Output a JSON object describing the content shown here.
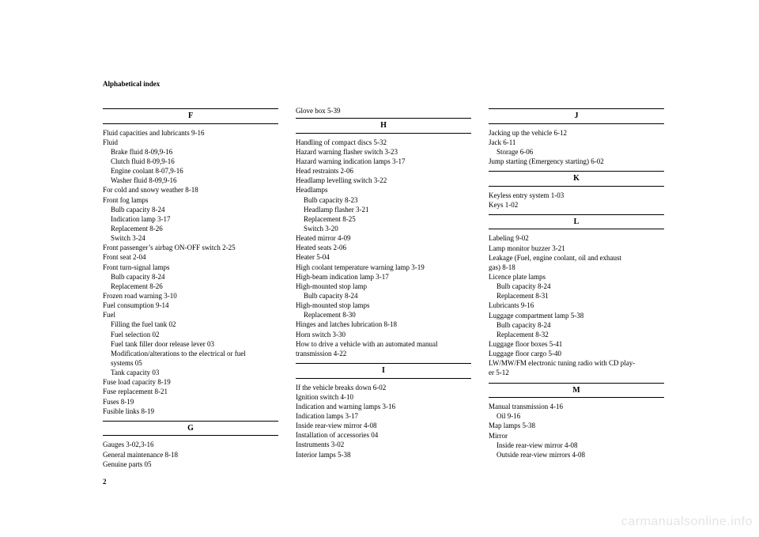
{
  "header": "Alphabetical index",
  "pageNum": "2",
  "watermark": "carmanualsonline.info",
  "col1": {
    "F": {
      "letter": "F",
      "lines": [
        {
          "t": "Fluid capacities and lubricants  9-16",
          "s": 0
        },
        {
          "t": "Fluid",
          "s": 0
        },
        {
          "t": "Brake fluid  8-09,9-16",
          "s": 1
        },
        {
          "t": "Clutch fluid  8-09,9-16",
          "s": 1
        },
        {
          "t": "Engine coolant  8-07,9-16",
          "s": 1
        },
        {
          "t": "Washer fluid  8-09,9-16",
          "s": 1
        },
        {
          "t": "For cold and snowy weather  8-18",
          "s": 0
        },
        {
          "t": "Front fog lamps",
          "s": 0
        },
        {
          "t": "Bulb capacity  8-24",
          "s": 1
        },
        {
          "t": "Indication lamp  3-17",
          "s": 1
        },
        {
          "t": "Replacement  8-26",
          "s": 1
        },
        {
          "t": "Switch  3-24",
          "s": 1
        },
        {
          "t": "Front passenger’s airbag ON-OFF switch  2-25",
          "s": 0
        },
        {
          "t": "Front seat  2-04",
          "s": 0
        },
        {
          "t": "Front turn-signal lamps",
          "s": 0
        },
        {
          "t": "Bulb capacity  8-24",
          "s": 1
        },
        {
          "t": "Replacement  8-26",
          "s": 1
        },
        {
          "t": "Frozen road warning  3-10",
          "s": 0
        },
        {
          "t": "Fuel consumption  9-14",
          "s": 0
        },
        {
          "t": "Fuel",
          "s": 0
        },
        {
          "t": "Filling the fuel tank  02",
          "s": 1
        },
        {
          "t": "Fuel selection  02",
          "s": 1
        },
        {
          "t": "Fuel tank filler door release lever  03",
          "s": 1
        },
        {
          "t": "Modification/alterations to the electrical or fuel",
          "s": 1
        },
        {
          "t": "systems  05",
          "s": 1
        },
        {
          "t": "Tank capacity  03",
          "s": 1
        },
        {
          "t": "Fuse load capacity  8-19",
          "s": 0
        },
        {
          "t": "Fuse replacement  8-21",
          "s": 0
        },
        {
          "t": "Fuses  8-19",
          "s": 0
        },
        {
          "t": "Fusible links  8-19",
          "s": 0
        }
      ]
    },
    "G": {
      "letter": "G",
      "lines": [
        {
          "t": "Gauges  3-02,3-16",
          "s": 0
        },
        {
          "t": "General maintenance  8-18",
          "s": 0
        },
        {
          "t": "Genuine parts  05",
          "s": 0
        }
      ]
    }
  },
  "col2": {
    "pre": [
      {
        "t": "Glove box  5-39",
        "s": 0
      }
    ],
    "H": {
      "letter": "H",
      "lines": [
        {
          "t": "Handling of compact discs  5-32",
          "s": 0
        },
        {
          "t": "Hazard warning flasher switch  3-23",
          "s": 0
        },
        {
          "t": "Hazard warning indication lamps  3-17",
          "s": 0
        },
        {
          "t": "Head restraints  2-06",
          "s": 0
        },
        {
          "t": "Headlamp levelling switch  3-22",
          "s": 0
        },
        {
          "t": "Headlamps",
          "s": 0
        },
        {
          "t": "Bulb capacity  8-23",
          "s": 1
        },
        {
          "t": "Headlamp flasher  3-21",
          "s": 1
        },
        {
          "t": "Replacement  8-25",
          "s": 1
        },
        {
          "t": "Switch  3-20",
          "s": 1
        },
        {
          "t": "Heated mirror  4-09",
          "s": 0
        },
        {
          "t": "Heated seats  2-06",
          "s": 0
        },
        {
          "t": "Heater  5-04",
          "s": 0
        },
        {
          "t": "High coolant temperature warning lamp  3-19",
          "s": 0
        },
        {
          "t": "High-beam indication lamp  3-17",
          "s": 0
        },
        {
          "t": "High-mounted stop lamp",
          "s": 0
        },
        {
          "t": "Bulb capacity  8-24",
          "s": 1
        },
        {
          "t": "High-mounted stop lamps",
          "s": 0
        },
        {
          "t": "Replacement  8-30",
          "s": 1
        },
        {
          "t": "Hinges and latches lubrication  8-18",
          "s": 0
        },
        {
          "t": "Horn switch  3-30",
          "s": 0
        },
        {
          "t": "How to drive a vehicle with an automated manual",
          "s": 0
        },
        {
          "t": "transmission  4-22",
          "s": 0
        }
      ]
    },
    "I": {
      "letter": "I",
      "lines": [
        {
          "t": "If the vehicle breaks down  6-02",
          "s": 0
        },
        {
          "t": "Ignition switch  4-10",
          "s": 0
        },
        {
          "t": "Indication and warning lamps  3-16",
          "s": 0
        },
        {
          "t": "Indication lamps  3-17",
          "s": 0
        },
        {
          "t": "Inside rear-view mirror  4-08",
          "s": 0
        },
        {
          "t": "Installation of accessories  04",
          "s": 0
        },
        {
          "t": "Instruments  3-02",
          "s": 0
        },
        {
          "t": "Interior lamps  5-38",
          "s": 0
        }
      ]
    }
  },
  "col3": {
    "J": {
      "letter": "J",
      "lines": [
        {
          "t": "Jacking up the vehicle  6-12",
          "s": 0
        },
        {
          "t": "Jack  6-11",
          "s": 0
        },
        {
          "t": "Storage  6-06",
          "s": 1
        },
        {
          "t": "Jump starting (Emergency starting)  6-02",
          "s": 0
        }
      ]
    },
    "K": {
      "letter": "K",
      "lines": [
        {
          "t": "Keyless entry system  1-03",
          "s": 0
        },
        {
          "t": "Keys  1-02",
          "s": 0
        }
      ]
    },
    "L": {
      "letter": "L",
      "lines": [
        {
          "t": "Labeling  9-02",
          "s": 0
        },
        {
          "t": "Lamp monitor buzzer  3-21",
          "s": 0
        },
        {
          "t": "Leakage (Fuel, engine coolant, oil and exhaust",
          "s": 0
        },
        {
          "t": "gas)  8-18",
          "s": 0
        },
        {
          "t": "Licence plate lamps",
          "s": 0
        },
        {
          "t": "Bulb capacity  8-24",
          "s": 1
        },
        {
          "t": "Replacement  8-31",
          "s": 1
        },
        {
          "t": "Lubricants  9-16",
          "s": 0
        },
        {
          "t": "Luggage compartment lamp  5-38",
          "s": 0
        },
        {
          "t": "Bulb capacity  8-24",
          "s": 1
        },
        {
          "t": "Replacement  8-32",
          "s": 1
        },
        {
          "t": "Luggage floor boxes  5-41",
          "s": 0
        },
        {
          "t": "Luggage floor cargo  5-40",
          "s": 0
        },
        {
          "t": "LW/MW/FM electronic tuning radio with CD play-",
          "s": 0
        },
        {
          "t": "er  5-12",
          "s": 0
        }
      ]
    },
    "M": {
      "letter": "M",
      "lines": [
        {
          "t": "Manual transmission  4-16",
          "s": 0
        },
        {
          "t": "Oil  9-16",
          "s": 1
        },
        {
          "t": "Map lamps  5-38",
          "s": 0
        },
        {
          "t": "Mirror",
          "s": 0
        },
        {
          "t": "Inside rear-view mirror  4-08",
          "s": 1
        },
        {
          "t": "Outside rear-view mirrors  4-08",
          "s": 1
        }
      ]
    }
  }
}
